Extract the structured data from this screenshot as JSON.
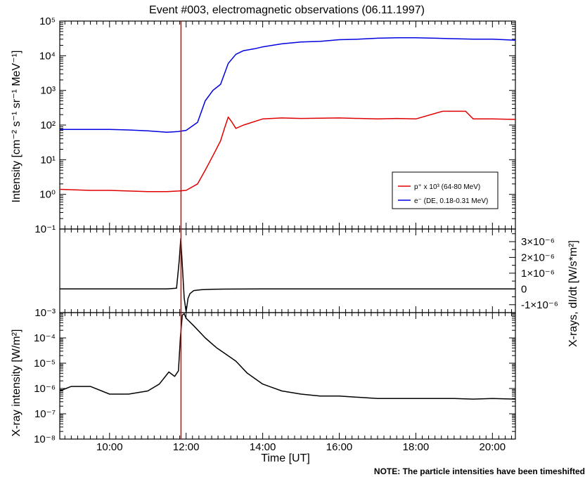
{
  "title": "Event #003, electromagnetic observations (06.11.1997)",
  "note": "NOTE: The particle intensities have been timeshifted",
  "xlabel": "Time [UT]",
  "x_ticks": [
    "10:00",
    "12:00",
    "14:00",
    "16:00",
    "18:00",
    "20:00"
  ],
  "event_marker": {
    "time": "11:52",
    "color": "#dd0000"
  },
  "panels": {
    "intensity": {
      "ylabel": "Intensity [cm⁻² s⁻¹ sr⁻¹ MeV⁻¹]",
      "y_ticks": [
        "10⁻¹",
        "10⁰",
        "10¹",
        "10²",
        "10³",
        "10⁴",
        "10⁵"
      ],
      "legend": [
        {
          "label": "p⁺ x 10³ (64-80 MeV)",
          "color": "#e00000"
        },
        {
          "label": "e⁻ (DE, 0.18-0.31 MeV)",
          "color": "#0000e0"
        }
      ]
    },
    "derivative": {
      "ylabel": "X-rays, dI/dt [W/s*m²]",
      "y_ticks": [
        "3×10⁻⁶",
        "2×10⁻⁶",
        "1×10⁻⁶",
        "0",
        "-1×10⁻⁶"
      ]
    },
    "xray": {
      "ylabel": "X-ray intensity [W/m²]",
      "y_ticks": [
        "10⁻⁸",
        "10⁻⁷",
        "10⁻⁶",
        "10⁻⁵",
        "10⁻⁴",
        "10⁻³"
      ]
    }
  },
  "chart_data": [
    {
      "type": "line",
      "title": "Event #003, electromagnetic observations (06.11.1997)",
      "ylabel": "Intensity [cm⁻² s⁻¹ sr⁻¹ MeV⁻¹]",
      "xlim": [
        8.7,
        20.6
      ],
      "ylim": [
        0.1,
        100000
      ],
      "yscale": "log",
      "x_unit": "hours UT",
      "series": [
        {
          "name": "e⁻ (DE, 0.18-0.31 MeV)",
          "color": "#0000e0",
          "x": [
            8.7,
            9.5,
            10.0,
            10.5,
            11.0,
            11.5,
            11.8,
            12.0,
            12.3,
            12.5,
            12.7,
            12.9,
            13.0,
            13.1,
            13.3,
            13.5,
            13.8,
            14.0,
            14.5,
            15.0,
            15.5,
            16.0,
            16.5,
            17.0,
            17.5,
            18.0,
            18.5,
            19.0,
            19.5,
            20.0,
            20.6
          ],
          "values": [
            75,
            75,
            75,
            72,
            68,
            62,
            65,
            70,
            120,
            500,
            1000,
            1500,
            3000,
            6000,
            11000,
            14000,
            16000,
            18000,
            22000,
            25000,
            26000,
            29000,
            30000,
            32000,
            33000,
            33000,
            32000,
            31000,
            30000,
            30000,
            28000
          ]
        },
        {
          "name": "p⁺ x 10³ (64-80 MeV)",
          "color": "#e00000",
          "x": [
            8.7,
            9.5,
            10.0,
            10.5,
            11.0,
            11.5,
            11.8,
            12.0,
            12.3,
            12.5,
            12.7,
            12.9,
            13.0,
            13.1,
            13.2,
            13.3,
            13.5,
            14.0,
            14.5,
            15.0,
            16.0,
            17.0,
            17.5,
            18.0,
            18.7,
            19.3,
            19.5,
            20.0,
            20.6
          ],
          "values": [
            1.4,
            1.3,
            1.3,
            1.25,
            1.2,
            1.2,
            1.25,
            1.3,
            2.0,
            5.0,
            13,
            35,
            80,
            170,
            120,
            80,
            100,
            150,
            160,
            155,
            160,
            150,
            155,
            150,
            250,
            250,
            150,
            150,
            145
          ]
        }
      ]
    },
    {
      "type": "line",
      "ylabel": "X-rays, dI/dt [W/s*m²]",
      "xlim": [
        8.7,
        20.6
      ],
      "ylim": [
        -1.5e-06,
        3.8e-06
      ],
      "series": [
        {
          "name": "",
          "color": "#000000",
          "x": [
            8.7,
            11.5,
            11.75,
            11.82,
            11.86,
            11.9,
            11.95,
            12.0,
            12.05,
            12.1,
            12.2,
            12.4,
            12.7,
            13.0,
            14.0,
            20.6
          ],
          "values": [
            0,
            0,
            5e-08,
            1.8e-06,
            3.2e-06,
            1.5e-06,
            -6e-07,
            -1.45e-06,
            -6e-07,
            -3e-07,
            -1e-07,
            -5e-08,
            -2e-08,
            -1e-08,
            0,
            0
          ]
        }
      ]
    },
    {
      "type": "line",
      "ylabel": "X-ray intensity [W/m²]",
      "xlabel": "Time [UT]",
      "xlim": [
        8.7,
        20.6
      ],
      "ylim": [
        1e-08,
        0.001
      ],
      "yscale": "log",
      "series": [
        {
          "name": "",
          "color": "#000000",
          "x": [
            8.7,
            9.0,
            9.5,
            10.0,
            10.5,
            11.0,
            11.3,
            11.55,
            11.7,
            11.8,
            11.85,
            11.9,
            11.95,
            12.0,
            12.2,
            12.5,
            12.8,
            13.0,
            13.3,
            13.6,
            14.0,
            14.5,
            15.0,
            15.5,
            16.0,
            16.5,
            17.0,
            17.5,
            18.0,
            18.5,
            19.0,
            19.5,
            20.0,
            20.6
          ],
          "values": [
            8e-07,
            1.2e-06,
            1.2e-06,
            6e-07,
            6e-07,
            8e-07,
            1.5e-06,
            4.5e-06,
            3e-06,
            5e-06,
            0.0001,
            0.0008,
            0.0009,
            0.0006,
            0.0003,
            0.0001,
            4e-05,
            2.5e-05,
            1.2e-05,
            4e-06,
            1.5e-06,
            8e-07,
            6e-07,
            5e-07,
            5e-07,
            4.5e-07,
            4e-07,
            4e-07,
            4e-07,
            4e-07,
            4e-07,
            3.8e-07,
            4e-07,
            3.8e-07
          ]
        }
      ]
    }
  ]
}
